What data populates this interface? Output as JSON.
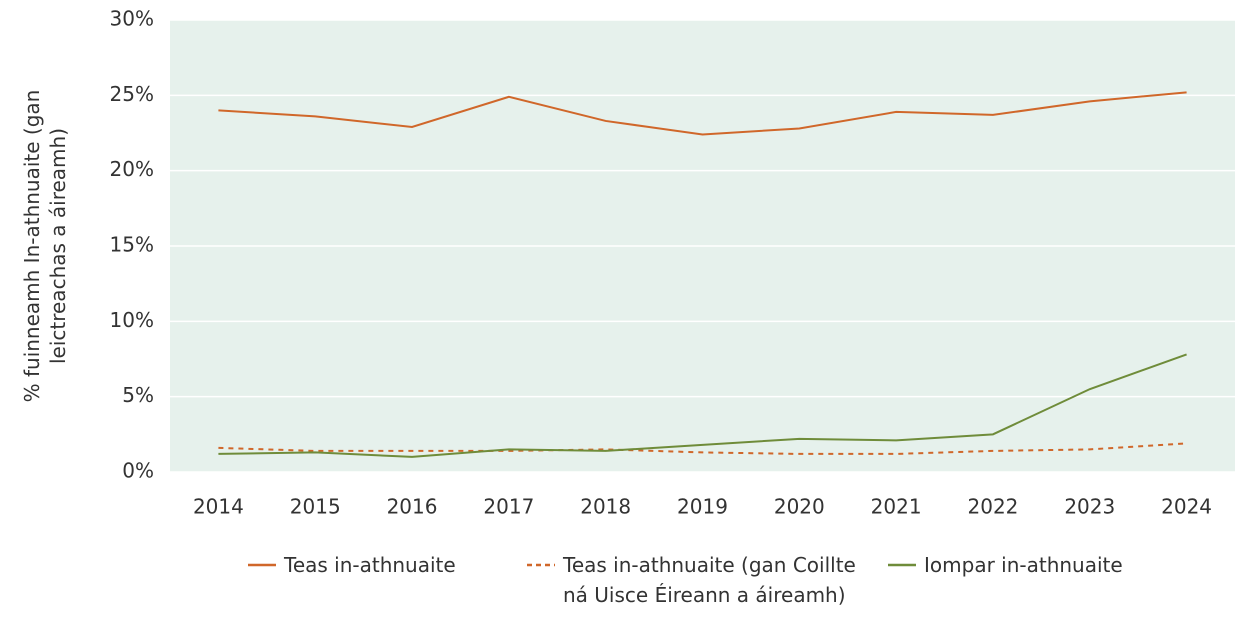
{
  "chart_data": {
    "type": "line",
    "y_label": "% fuinneamh In-athnuaite (gan leictreachas a áireamh)",
    "categories": [
      "2014",
      "2015",
      "2016",
      "2017",
      "2018",
      "2019",
      "2020",
      "2021",
      "2022",
      "2023",
      "2024"
    ],
    "series": [
      {
        "name": "Teas in-athnuaite",
        "color": "#d0672a",
        "line_style": "solid",
        "values": [
          24.0,
          23.6,
          22.9,
          24.9,
          23.3,
          22.4,
          22.8,
          23.9,
          23.7,
          24.6,
          25.2
        ]
      },
      {
        "name": "Teas in-athnuaite (gan Coillte ná Uisce Éireann a áireamh)",
        "color": "#d0672a",
        "line_style": "dashed",
        "values": [
          1.6,
          1.4,
          1.4,
          1.4,
          1.5,
          1.3,
          1.2,
          1.2,
          1.4,
          1.5,
          1.9
        ]
      },
      {
        "name": "Iompar in-athnuaite",
        "color": "#6f8c3a",
        "line_style": "solid",
        "values": [
          1.2,
          1.3,
          1.0,
          1.5,
          1.4,
          1.8,
          2.2,
          2.1,
          2.5,
          5.5,
          7.8
        ]
      }
    ],
    "ylim": [
      0,
      30
    ],
    "yticks": [
      {
        "value": 0,
        "label": "0%"
      },
      {
        "value": 5,
        "label": "5%"
      },
      {
        "value": 10,
        "label": "10%"
      },
      {
        "value": 15,
        "label": "15%"
      },
      {
        "value": 20,
        "label": "20%"
      },
      {
        "value": 25,
        "label": "25%"
      },
      {
        "value": 30,
        "label": "30%"
      }
    ],
    "grid": true,
    "plot_background": "#e6f1ec",
    "legend": "bottom"
  }
}
